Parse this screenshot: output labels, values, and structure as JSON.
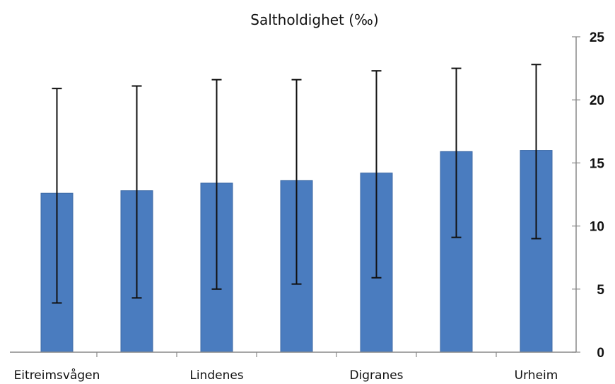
{
  "chart_data": {
    "type": "bar",
    "title": "Saltholdighet (‰)",
    "xlabel": "",
    "ylabel": "",
    "categories": [
      "Eitreimsvågen",
      "",
      "Lindenes",
      "",
      "Digranes",
      "",
      "Urheim"
    ],
    "values": [
      12.6,
      12.8,
      13.4,
      13.6,
      14.2,
      15.9,
      16.0
    ],
    "error_low": [
      3.9,
      4.3,
      5.0,
      5.4,
      5.9,
      9.1,
      9.0
    ],
    "error_high": [
      20.9,
      21.1,
      21.6,
      21.6,
      22.3,
      22.5,
      22.8
    ],
    "ylim": [
      0,
      25
    ],
    "yticks": [
      0,
      5,
      10,
      15,
      20,
      25
    ],
    "y_axis_side": "right",
    "grid": false,
    "legend": "none",
    "colors": {
      "bar": "#4a7cbf",
      "bar_edge": "#3d6aa6",
      "error_bar": "#111111",
      "axis": "#888888"
    }
  }
}
